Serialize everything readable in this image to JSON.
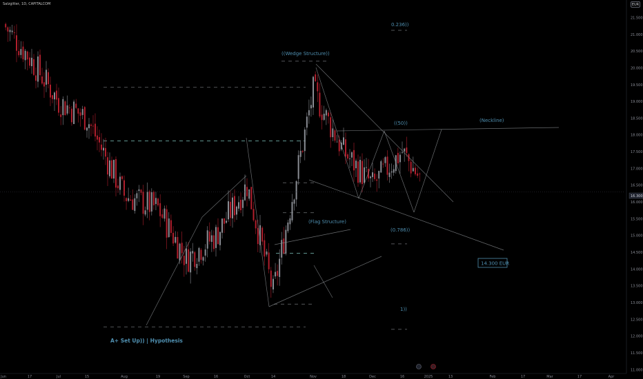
{
  "header": {
    "symbol_title": "Salzgitter, 1D, CAPITALCOM",
    "currency": "EUR"
  },
  "price_tag": "16.300",
  "colors": {
    "background": "#000000",
    "candle_up": "#8a8d94",
    "candle_down": "#b21f2d",
    "annotation": "#4f8fb0",
    "trendline": "#8d9196"
  },
  "chart_data": {
    "type": "candlestick",
    "x_ticks": [
      "Jun",
      "17",
      "Jul",
      "15",
      "Aug",
      "19",
      "Sep",
      "16",
      "Oct",
      "14",
      "Nov",
      "18",
      "Dec",
      "16",
      "2025",
      "13",
      "Feb",
      "17",
      "Mar",
      "17",
      "Apr"
    ],
    "y_ticks": [
      "21.500",
      "21.000",
      "20.500",
      "20.000",
      "19.500",
      "19.000",
      "18.500",
      "18.000",
      "17.500",
      "17.000",
      "16.500",
      "16.000",
      "15.500",
      "15.000",
      "14.500",
      "14.000",
      "13.500",
      "13.000",
      "12.500",
      "12.000",
      "11.500",
      "11.000"
    ],
    "ylim": [
      10.8,
      21.9
    ],
    "last_price": 16.3,
    "close_path": [
      {
        "x": "Jun",
        "y": 21.3
      },
      {
        "x": "17",
        "y": 20.3
      },
      {
        "x": "Jul",
        "y": 19.0
      },
      {
        "x": "15",
        "y": 18.5
      },
      {
        "x": "Aug",
        "y": 16.2
      },
      {
        "x": "19",
        "y": 15.8
      },
      {
        "x": "Sep",
        "y": 14.3
      },
      {
        "x": "16",
        "y": 15.0
      },
      {
        "x": "Oct",
        "y": 16.5
      },
      {
        "x": "14",
        "y": 13.3
      },
      {
        "x": "Nov",
        "y": 19.3
      },
      {
        "x": "18",
        "y": 17.5
      },
      {
        "x": "Dec",
        "y": 16.5
      },
      {
        "x": "16",
        "y": 17.5
      },
      {
        "x": "2025",
        "y": 16.3
      }
    ],
    "annotations": [
      "((Wedge Structure))",
      "((50))",
      "(Neckline)",
      "(Flag Structure)",
      "(0.786))",
      "0.236))",
      "1))",
      "A+ Set Up)) | Hypothesis",
      "14.300 EUR"
    ],
    "grid": false,
    "legend": "none"
  },
  "labels": {
    "wedge": "((Wedge Structure))",
    "fifty": "((50))",
    "neckline": "(Neckline)",
    "flag": "(Flag Structure)",
    "fib786": "(0.786))",
    "fib236": "0.236))",
    "fib1": "1))",
    "hypothesis": "A+ Set Up)) | Hypothesis",
    "target": "14.300 EUR"
  }
}
